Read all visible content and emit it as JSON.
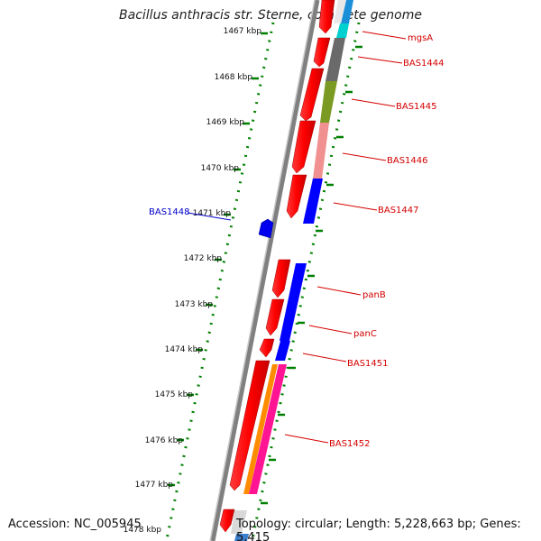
{
  "title": "Bacillus anthracis str. Sterne, complete genome",
  "footer": {
    "accession": "Accession: NC_005945",
    "summary": "Topology: circular; Length: 5,228,663 bp; Genes: 5,415"
  },
  "ruler": {
    "ticks": [
      "1467 kbp",
      "1468 kbp",
      "1469 kbp",
      "1470 kbp",
      "1471 kbp",
      "1472 kbp",
      "1473 kbp",
      "1474 kbp",
      "1475 kbp",
      "1476 kbp",
      "1477 kbp",
      "1478 kbp"
    ]
  },
  "gene_labels": {
    "mgsA": "mgsA",
    "BAS1444": "BAS1444",
    "BAS1445": "BAS1445",
    "BAS1446": "BAS1446",
    "BAS1447": "BAS1447",
    "BAS1448": "BAS1448",
    "panB": "panB",
    "panC": "panC",
    "BAS1451": "BAS1451",
    "BAS1452": "BAS1452"
  },
  "colors": {
    "gene_red": "#ff0000",
    "label_red": "#d40000",
    "label_blue": "#0000cc",
    "tick_green": "#008000",
    "backbone": "#808080"
  }
}
